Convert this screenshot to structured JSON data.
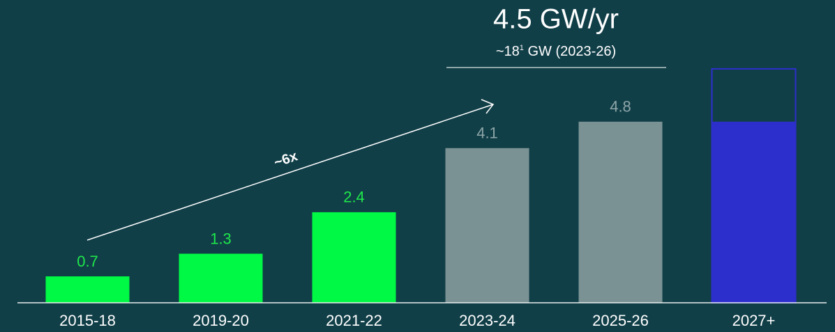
{
  "chart_data": {
    "type": "bar",
    "headline": "4.5 GW/yr",
    "headline_sub": [
      "~18",
      "1",
      " GW (2023-26)"
    ],
    "growth_label": "~6x",
    "categories": [
      "2015-18",
      "2019-20",
      "2021-22",
      "2023-24",
      "2025-26",
      "2027+"
    ],
    "values": [
      0.7,
      1.3,
      2.4,
      4.1,
      4.8,
      4.8
    ],
    "value_labels": [
      "0.7",
      "1.3",
      "2.4",
      "4.1",
      "4.8",
      null
    ],
    "upper_values": [
      null,
      null,
      null,
      null,
      null,
      6.2
    ],
    "colors": [
      "#00f944",
      "#00f944",
      "#00f944",
      "#7a9294",
      "#7a9294",
      "#2d2fcc"
    ],
    "label_colors": [
      "#1ee84a",
      "#1ee84a",
      "#1ee84a",
      "#8ea6a8",
      "#8ea6a8",
      "#8ea6a8"
    ],
    "ylim": [
      0,
      8
    ]
  }
}
